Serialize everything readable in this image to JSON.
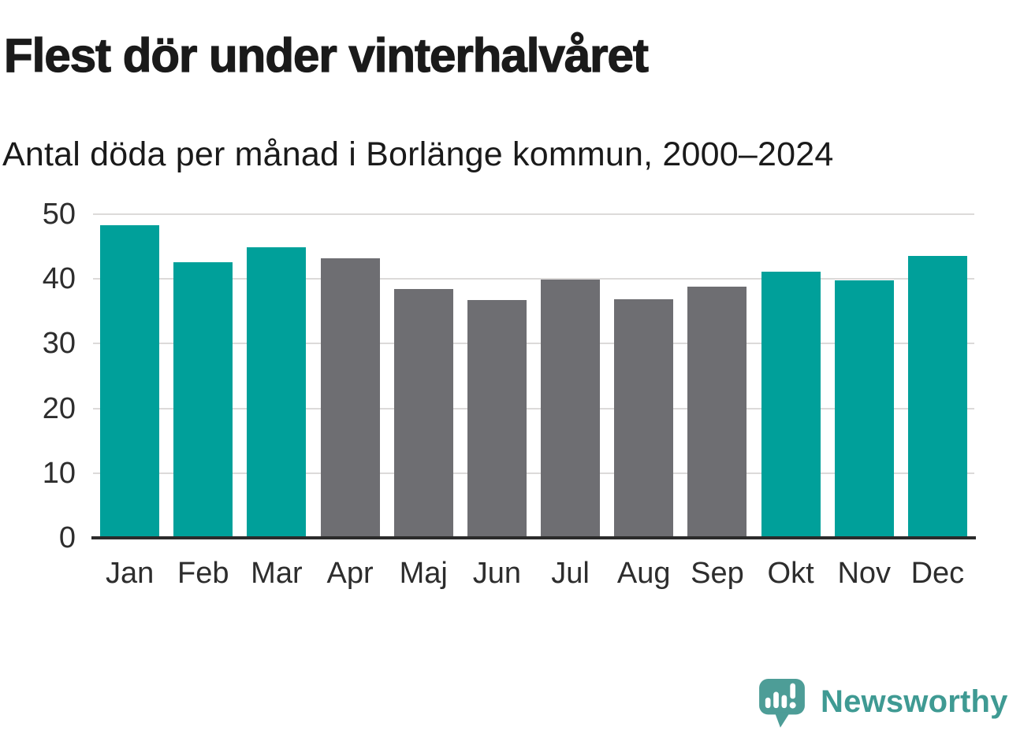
{
  "header": {
    "title": "Flest dör under vinterhalvåret",
    "subtitle": "Antal döda per månad i Borlänge kommun, 2000–2024"
  },
  "chart_data": {
    "type": "bar",
    "title": "Flest dör under vinterhalvåret",
    "subtitle": "Antal döda per månad i Borlänge kommun, 2000–2024",
    "categories": [
      "Jan",
      "Feb",
      "Mar",
      "Apr",
      "Maj",
      "Jun",
      "Jul",
      "Aug",
      "Sep",
      "Okt",
      "Nov",
      "Dec"
    ],
    "values": [
      48.3,
      42.6,
      44.9,
      43.2,
      38.4,
      36.8,
      39.9,
      36.9,
      38.8,
      41.1,
      39.8,
      43.6
    ],
    "bar_groups": [
      "winter",
      "winter",
      "winter",
      "summer",
      "summer",
      "summer",
      "summer",
      "summer",
      "summer",
      "winter",
      "winter",
      "winter"
    ],
    "group_colors": {
      "winter": "#00a09a",
      "summer": "#6e6e72"
    },
    "xlabel": "",
    "ylabel": "",
    "ylim": [
      0,
      50
    ],
    "yticks": [
      0,
      10,
      20,
      30,
      40,
      50
    ],
    "grid": "horizontal-light",
    "legend": "none",
    "axis_color": "#2b2b2b",
    "gridline_color": "#dcdad9",
    "tick_label_color": "#2d2d2d"
  },
  "footer": {
    "brand": "Newsworthy",
    "brand_color": "#3f9a93",
    "logo_icon": "speech-bubble-bar-chart-icon"
  }
}
